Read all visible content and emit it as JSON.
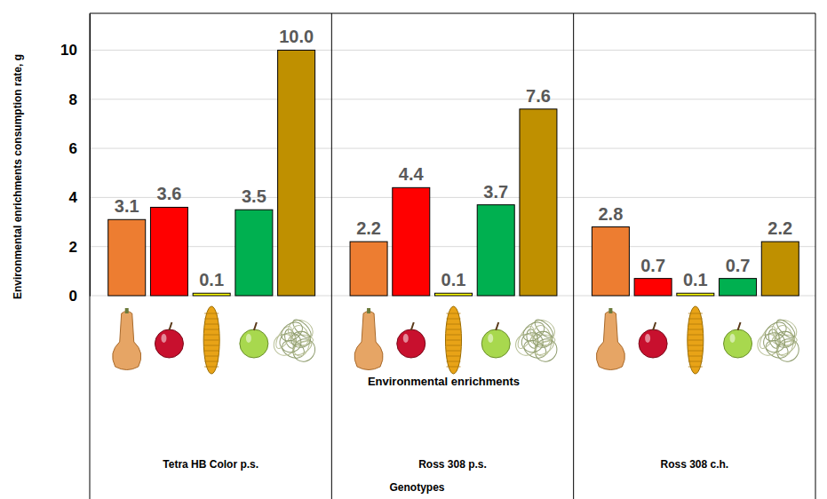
{
  "chart_data": {
    "type": "bar",
    "ylabel": "Environmental enrichments consumption rate, g",
    "xlabel": "Genotypes",
    "annotations": [
      "Environmental enrichments"
    ],
    "categories": [
      "Tetra HB Color p.s.",
      "Ross 308 p.s.",
      "Ross 308 c.h."
    ],
    "series": [
      {
        "color": "#ED7D31",
        "values": [
          3.1,
          2.2,
          2.8
        ]
      },
      {
        "color": "#FF0000",
        "values": [
          3.6,
          4.4,
          0.7
        ]
      },
      {
        "color": "#FFFF00",
        "values": [
          0.1,
          0.1,
          0.1
        ]
      },
      {
        "color": "#00B050",
        "values": [
          3.5,
          3.7,
          0.7
        ]
      },
      {
        "color": "#BF9000",
        "values": [
          10.0,
          7.6,
          2.2
        ],
        "value_labels": [
          "10.0",
          "7.6",
          "2.2"
        ]
      }
    ],
    "ylim": [
      0,
      11.5
    ],
    "yticks": [
      0,
      2,
      4,
      6,
      8,
      10
    ],
    "grid": true,
    "data_labels": true
  }
}
